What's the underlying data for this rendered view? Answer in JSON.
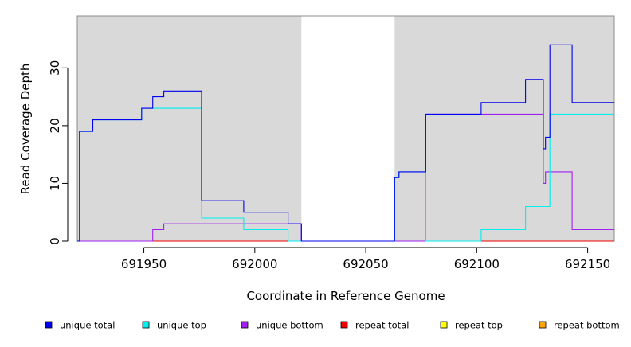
{
  "chart_data": {
    "type": "line",
    "title": "",
    "xlabel": "Coordinate in Reference Genome",
    "ylabel": "Read Coverage Depth",
    "xlim": [
      691920,
      692162
    ],
    "ylim": [
      0,
      39
    ],
    "xticks": [
      691950,
      692000,
      692050,
      692100,
      692150
    ],
    "xtick_labels": [
      "691950",
      "692000",
      "692050",
      "692100",
      "692150"
    ],
    "yticks": [
      0,
      10,
      20,
      30
    ],
    "ytick_labels": [
      "0",
      "10",
      "20",
      "30"
    ],
    "step": true,
    "grid": false,
    "shaded_regions": [
      {
        "x0": 691920,
        "x1": 692021,
        "color": "#d9d9d9"
      },
      {
        "x0": 692063,
        "x1": 692162,
        "color": "#d9d9d9"
      }
    ],
    "legend_position": "bottom",
    "legend": [
      {
        "label": "unique total",
        "color": "#0000ee"
      },
      {
        "label": "unique top",
        "color": "#00eeee"
      },
      {
        "label": "unique bottom",
        "color": "#a020f0"
      },
      {
        "label": "repeat total",
        "color": "#ee0000"
      },
      {
        "label": "repeat top",
        "color": "#ffff00"
      },
      {
        "label": "repeat bottom",
        "color": "#ffa500"
      }
    ],
    "series": [
      {
        "name": "unique total",
        "color": "#0000ee",
        "x": [
          691920,
          691921,
          691927,
          691949,
          691954,
          691959,
          691976,
          691995,
          692015,
          692021,
          692063,
          692064,
          692065,
          692077,
          692102,
          692122,
          692130,
          692131,
          692133,
          692143,
          692162
        ],
        "y": [
          0,
          19,
          21,
          23,
          25,
          26,
          7,
          5,
          3,
          0,
          11,
          11,
          12,
          22,
          24,
          28,
          16,
          18,
          34,
          24,
          24
        ]
      },
      {
        "name": "unique top",
        "color": "#00eeee",
        "x": [
          691920,
          691921,
          691927,
          691949,
          691954,
          691976,
          691995,
          692015,
          692021,
          692063,
          692064,
          692065,
          692077,
          692102,
          692122,
          692133,
          692162
        ],
        "y": [
          0,
          19,
          21,
          23,
          23,
          4,
          2,
          0,
          0,
          11,
          11,
          12,
          0,
          2,
          6,
          22,
          22
        ]
      },
      {
        "name": "unique bottom",
        "color": "#a020f0",
        "x": [
          691920,
          691954,
          691959,
          692015,
          692021,
          692077,
          692130,
          692131,
          692143,
          692162
        ],
        "y": [
          0,
          2,
          3,
          3,
          0,
          22,
          10,
          12,
          2,
          2
        ]
      },
      {
        "name": "repeat total",
        "color": "#ee0000",
        "x": [
          691920,
          692162
        ],
        "y": [
          0,
          0
        ]
      },
      {
        "name": "repeat top",
        "color": "#ffff00",
        "x": [
          691920,
          692162
        ],
        "y": [
          0,
          0
        ]
      },
      {
        "name": "repeat bottom",
        "color": "#ffa500",
        "x": [
          691920,
          692162
        ],
        "y": [
          0,
          0
        ]
      }
    ]
  }
}
